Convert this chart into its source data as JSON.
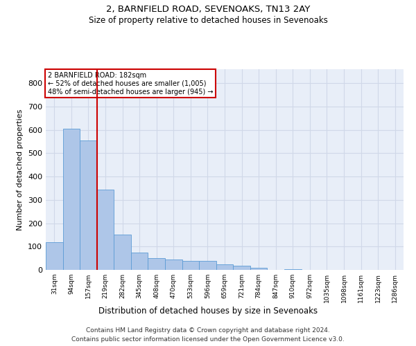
{
  "title_line1": "2, BARNFIELD ROAD, SEVENOAKS, TN13 2AY",
  "title_line2": "Size of property relative to detached houses in Sevenoaks",
  "xlabel": "Distribution of detached houses by size in Sevenoaks",
  "ylabel": "Number of detached properties",
  "bar_labels": [
    "31sqm",
    "94sqm",
    "157sqm",
    "219sqm",
    "282sqm",
    "345sqm",
    "408sqm",
    "470sqm",
    "533sqm",
    "596sqm",
    "659sqm",
    "721sqm",
    "784sqm",
    "847sqm",
    "910sqm",
    "972sqm",
    "1035sqm",
    "1098sqm",
    "1161sqm",
    "1223sqm",
    "1286sqm"
  ],
  "bar_values": [
    120,
    605,
    555,
    345,
    150,
    75,
    50,
    45,
    40,
    38,
    25,
    18,
    10,
    0,
    3,
    0,
    0,
    0,
    0,
    0,
    0
  ],
  "bar_color": "#aec6e8",
  "bar_edge_color": "#5b9bd5",
  "red_line_x": 2.5,
  "red_line_color": "#cc0000",
  "annotation_text": "2 BARNFIELD ROAD: 182sqm\n← 52% of detached houses are smaller (1,005)\n48% of semi-detached houses are larger (945) →",
  "annotation_box_color": "#ffffff",
  "annotation_box_edge": "#cc0000",
  "ylim": [
    0,
    860
  ],
  "yticks": [
    0,
    100,
    200,
    300,
    400,
    500,
    600,
    700,
    800
  ],
  "grid_color": "#d0d8e8",
  "background_color": "#e8eef8",
  "footer_line1": "Contains HM Land Registry data © Crown copyright and database right 2024.",
  "footer_line2": "Contains public sector information licensed under the Open Government Licence v3.0."
}
